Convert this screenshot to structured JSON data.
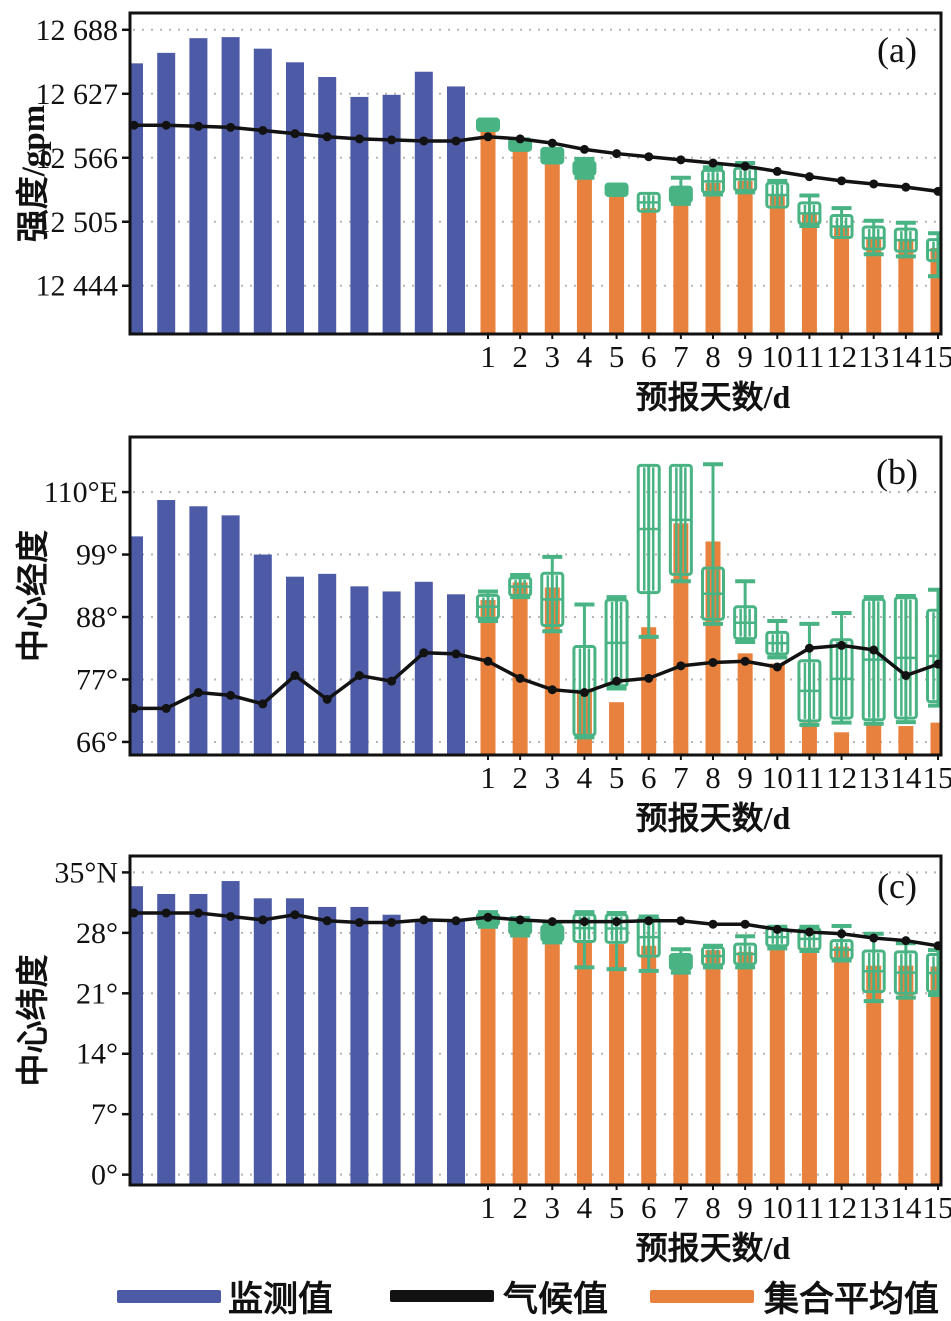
{
  "figure_title": "subtropical-high-ensemble-forecast-verification",
  "colors": {
    "observation_blue": "#4d5aa5",
    "climate_black": "#121212",
    "ensemble_orange": "#e8813d",
    "spread_green": "#49b384",
    "grid_dot": "#b5b5b5",
    "axis": "#111111",
    "background": "#ffffff"
  },
  "x_axis": {
    "title": "预报天数/d",
    "tick_labels": [
      "1",
      "2",
      "3",
      "4",
      "5",
      "6",
      "7",
      "8",
      "9",
      "10",
      "11",
      "12",
      "13",
      "14",
      "15"
    ]
  },
  "legend": {
    "items": [
      {
        "label": "监测值",
        "color": "#4d5aa5",
        "marker": "bar"
      },
      {
        "label": "气候值",
        "color": "#121212",
        "marker": "line"
      },
      {
        "label": "集合平均值",
        "color": "#e8813d",
        "marker": "bar"
      }
    ]
  },
  "chart_data": [
    {
      "id": "a",
      "panel_label": "(a)",
      "type": "bar+line+boxwhisker",
      "ylabel": "强度/gpm",
      "ylim": [
        12398,
        12704
      ],
      "yticks": [
        {
          "value": 12688,
          "label": "12 688"
        },
        {
          "value": 12627,
          "label": "12 627"
        },
        {
          "value": 12566,
          "label": "12 566"
        },
        {
          "value": 12505,
          "label": "12 505"
        },
        {
          "value": 12444,
          "label": "12 444"
        }
      ],
      "observed_bars": [
        12656,
        12666,
        12680,
        12681,
        12670,
        12657,
        12643,
        12624,
        12626,
        12648,
        12634
      ],
      "climate_line_observed": [
        12597,
        12597,
        12596,
        12595,
        12592,
        12589,
        12586,
        12584,
        12583,
        12582,
        12582
      ],
      "climate_line_forecast": [
        12586,
        12584,
        12580,
        12574,
        12570,
        12567,
        12564,
        12561,
        12558,
        12553,
        12548,
        12544,
        12541,
        12538,
        12534
      ],
      "climate_line_end": 12532,
      "ensemble_mean_bars": [
        12595,
        12576,
        12564,
        12552,
        12532,
        12518,
        12530,
        12542,
        12544,
        12530,
        12512,
        12500,
        12489,
        12487,
        12480
      ],
      "spread_box_high": [
        12603,
        12584,
        12575,
        12562,
        12541,
        12532,
        12538,
        12554,
        12556,
        12542,
        12523,
        12511,
        12500,
        12498,
        12488
      ],
      "spread_box_low": [
        12592,
        12573,
        12561,
        12550,
        12530,
        12515,
        12524,
        12533,
        12535,
        12519,
        12503,
        12490,
        12479,
        12477,
        12468
      ],
      "spread_whisker_high": [
        12604,
        12585,
        12576,
        12565,
        12542,
        12533,
        12547,
        12557,
        12561,
        12544,
        12530,
        12518,
        12506,
        12504,
        12494
      ],
      "spread_whisker_low": [
        12591,
        12572,
        12560,
        12547,
        12529,
        12514,
        12522,
        12531,
        12533,
        12518,
        12501,
        12489,
        12474,
        12472,
        12453
      ]
    },
    {
      "id": "b",
      "panel_label": "(b)",
      "type": "bar+line+boxwhisker",
      "ylabel": "中心经度",
      "ylim": [
        63.7,
        119.7
      ],
      "yticks": [
        {
          "value": 110,
          "label": "110°E"
        },
        {
          "value": 99,
          "label": "99°"
        },
        {
          "value": 88,
          "label": "88°"
        },
        {
          "value": 77,
          "label": "77°"
        },
        {
          "value": 66,
          "label": "66°"
        }
      ],
      "observed_bars": [
        102.2,
        108.6,
        107.5,
        105.9,
        99.0,
        95.1,
        95.6,
        93.4,
        92.5,
        94.2,
        92.0
      ],
      "climate_line_observed": [
        71.9,
        71.9,
        74.7,
        74.2,
        72.7,
        77.7,
        73.5,
        77.7,
        76.7,
        81.7,
        81.5
      ],
      "climate_line_forecast": [
        80.2,
        77.2,
        75.2,
        74.7,
        76.7,
        77.2,
        79.4,
        80.0,
        80.2,
        79.2,
        82.5,
        83.0,
        82.2,
        77.7,
        79.7
      ],
      "climate_line_end": 80.0,
      "ensemble_mean_bars": [
        91.0,
        94.1,
        93.2,
        75.1,
        73.0,
        86.2,
        104.5,
        101.3,
        81.6,
        79.8,
        69.4,
        67.7,
        69.1,
        68.8,
        69.4
      ],
      "spread_box_high": [
        91.8,
        94.9,
        95.7,
        82.8,
        91.0,
        114.7,
        114.7,
        96.6,
        89.8,
        85.3,
        80.3,
        84.0,
        91.1,
        91.4,
        89.2
      ],
      "spread_box_low": [
        87.8,
        91.8,
        86.5,
        67.2,
        75.9,
        92.3,
        95.5,
        87.6,
        84.2,
        81.5,
        69.7,
        70.2,
        69.9,
        70.2,
        73.1
      ],
      "spread_whisker_high": [
        92.5,
        95.4,
        98.6,
        90.2,
        91.5,
        114.9,
        114.9,
        114.9,
        94.3,
        87.3,
        86.8,
        88.7,
        91.5,
        91.7,
        92.8
      ],
      "spread_whisker_low": [
        87.3,
        91.5,
        85.5,
        66.8,
        75.4,
        84.5,
        94.3,
        86.8,
        83.6,
        80.9,
        69.0,
        69.4,
        69.2,
        69.5,
        72.4
      ]
    },
    {
      "id": "c",
      "panel_label": "(c)",
      "type": "bar+line+boxwhisker",
      "ylabel": "中心纬度",
      "ylim": [
        -1.2,
        36.9
      ],
      "yticks": [
        {
          "value": 35,
          "label": "35°N"
        },
        {
          "value": 28,
          "label": "28°"
        },
        {
          "value": 21,
          "label": "21°"
        },
        {
          "value": 14,
          "label": "14°"
        },
        {
          "value": 7,
          "label": "7°"
        },
        {
          "value": 0,
          "label": "0°"
        }
      ],
      "observed_bars": [
        33.4,
        32.5,
        32.5,
        34.0,
        32.0,
        32.0,
        31.0,
        31.0,
        30.1,
        29.6,
        29.6
      ],
      "climate_line_observed": [
        30.3,
        30.3,
        30.3,
        29.9,
        29.5,
        30.1,
        29.4,
        29.2,
        29.2,
        29.5,
        29.4
      ],
      "climate_line_forecast": [
        29.8,
        29.5,
        29.3,
        29.3,
        29.3,
        29.4,
        29.4,
        29.0,
        29.0,
        28.4,
        28.1,
        27.9,
        27.4,
        27.1,
        26.5
      ],
      "climate_line_end": 26.2,
      "ensemble_mean_bars": [
        29.6,
        28.7,
        28.0,
        26.9,
        26.7,
        26.5,
        25.3,
        26.0,
        25.8,
        26.4,
        26.3,
        26.4,
        24.2,
        24.2,
        24.1
      ],
      "spread_box_high": [
        30.2,
        29.4,
        28.8,
        30.1,
        30.1,
        29.7,
        25.5,
        26.3,
        26.7,
        28.5,
        28.5,
        27.1,
        25.9,
        25.8,
        25.5
      ],
      "spread_box_low": [
        28.9,
        27.9,
        27.1,
        27.0,
        26.9,
        25.3,
        23.8,
        24.3,
        24.4,
        26.5,
        26.1,
        25.0,
        21.2,
        21.0,
        21.2
      ],
      "spread_whisker_high": [
        30.4,
        29.7,
        29.2,
        30.4,
        30.3,
        29.9,
        26.1,
        26.5,
        27.6,
        28.7,
        28.7,
        28.8,
        27.9,
        26.8,
        26.0
      ],
      "spread_whisker_low": [
        28.7,
        27.7,
        26.9,
        24.0,
        23.8,
        23.6,
        23.4,
        24.0,
        24.0,
        26.2,
        25.9,
        24.8,
        20.1,
        20.5,
        20.8
      ]
    }
  ]
}
